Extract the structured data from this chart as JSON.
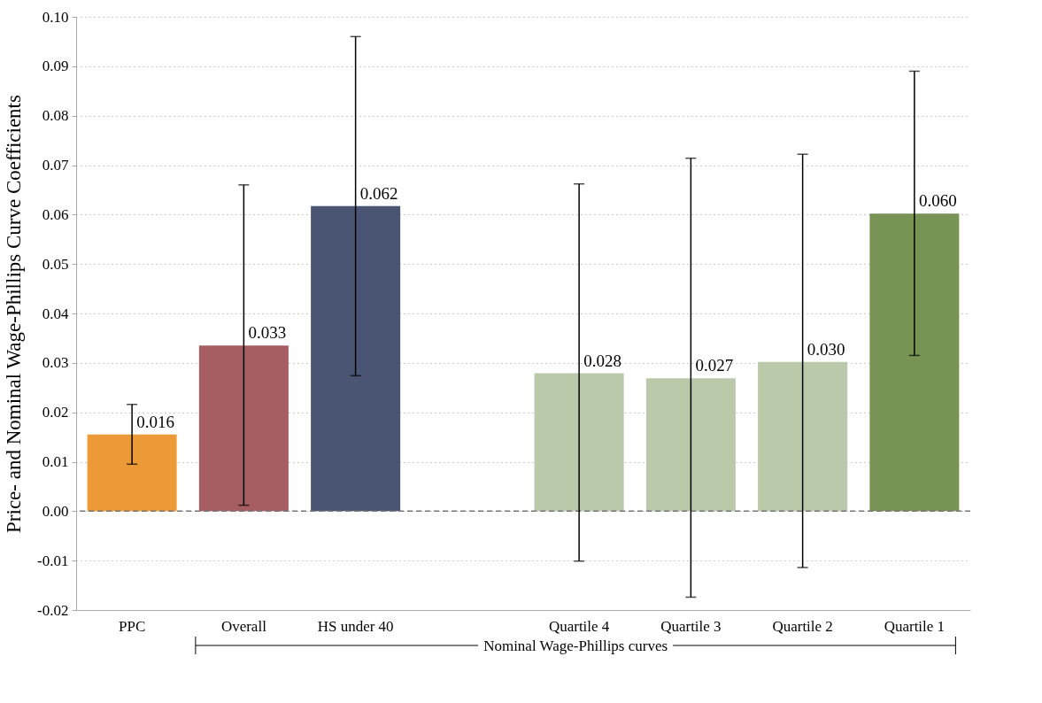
{
  "chart_data": {
    "type": "bar",
    "ylabel": "Price- and Nominal Wage-Phillips Curve Coefficients",
    "categories": [
      "PPC",
      "Overall",
      "HS under 40",
      null,
      "Quartile 4",
      "Quartile 3",
      "Quartile 2",
      "Quartile 1"
    ],
    "values": [
      0.0155,
      0.0335,
      0.0617,
      null,
      0.0279,
      0.0269,
      0.0302,
      0.0602
    ],
    "colors": [
      "#eb9a37",
      "#a65e62",
      "#4a5573",
      "#ffffff",
      "#bbc9ab",
      "#bbc9ab",
      "#bbc9ab",
      "#789455"
    ],
    "errors": [
      [
        0.0095,
        0.0216
      ],
      [
        0.0012,
        0.066
      ],
      [
        0.0274,
        0.096
      ],
      null,
      [
        -0.0101,
        0.0662
      ],
      [
        -0.0174,
        0.0714
      ],
      [
        -0.0114,
        0.0722
      ],
      [
        0.0315,
        0.089
      ]
    ],
    "value_labels": [
      "0.016",
      "0.033",
      "0.062",
      null,
      "0.028",
      "0.027",
      "0.030",
      "0.060"
    ],
    "ylim": [
      -0.02,
      0.1
    ],
    "yticks": [
      {
        "value": -0.02,
        "label": "-0.02"
      },
      {
        "value": -0.01,
        "label": "-0.01"
      },
      {
        "value": 0,
        "label": "0.00"
      },
      {
        "value": 0.01,
        "label": "0.01"
      },
      {
        "value": 0.02,
        "label": "0.02"
      },
      {
        "value": 0.03,
        "label": "0.03"
      },
      {
        "value": 0.04,
        "label": "0.04"
      },
      {
        "value": 0.05,
        "label": "0.05"
      },
      {
        "value": 0.06,
        "label": "0.06"
      },
      {
        "value": 0.07,
        "label": "0.07"
      },
      {
        "value": 0.08,
        "label": "0.08"
      },
      {
        "value": 0.09,
        "label": "0.09"
      },
      {
        "value": 0.1,
        "label": "0.10"
      }
    ],
    "grid": "y",
    "ref_lines": [
      {
        "axis": "y",
        "value": 0,
        "color": "#777777",
        "line_style": "dashed"
      }
    ],
    "annotations": [
      "Nominal Wage-Phillips curves"
    ]
  }
}
